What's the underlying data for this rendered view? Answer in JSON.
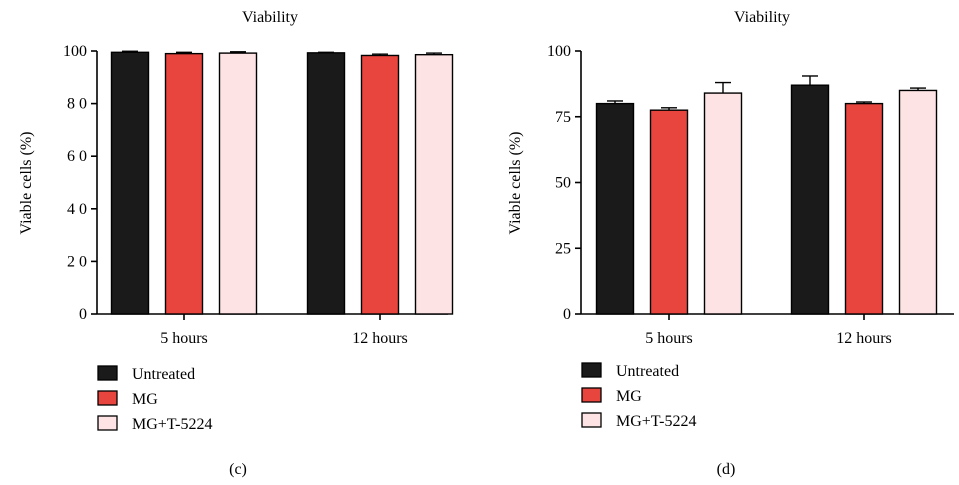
{
  "chart_data": [
    {
      "type": "bar",
      "panel_label": "(c)",
      "title": "Viability",
      "ylabel": "Viable cells (%)",
      "xlabel": "",
      "categories": [
        "5 hours",
        "12 hours"
      ],
      "ylim": [
        0,
        100
      ],
      "yticks": [
        0,
        20,
        40,
        60,
        80,
        100
      ],
      "ytick_labels": [
        "0",
        "2 0",
        "4 0",
        "6 0",
        "8 0",
        "100"
      ],
      "grid": false,
      "legend_position": "bottom-left",
      "series": [
        {
          "name": "Untreated",
          "color": "#1a1a1a",
          "values": [
            99.5,
            99.3
          ],
          "errors": [
            0.4,
            0.2
          ]
        },
        {
          "name": "MG",
          "color": "#e8453f",
          "values": [
            99.0,
            98.3
          ],
          "errors": [
            0.5,
            0.5
          ]
        },
        {
          "name": "MG+T-5224",
          "color": "#fde3e3",
          "values": [
            99.2,
            98.6
          ],
          "errors": [
            0.5,
            0.6
          ]
        }
      ]
    },
    {
      "type": "bar",
      "panel_label": "(d)",
      "title": "Viability",
      "ylabel": "Viable cells (%)",
      "xlabel": "",
      "categories": [
        "5 hours",
        "12 hours"
      ],
      "ylim": [
        0,
        100
      ],
      "yticks": [
        0,
        25,
        50,
        75,
        100
      ],
      "ytick_labels": [
        "0",
        "25",
        "50",
        "75",
        "100"
      ],
      "grid": false,
      "legend_position": "bottom-left",
      "series": [
        {
          "name": "Untreated",
          "color": "#1a1a1a",
          "values": [
            80.0,
            87.0
          ],
          "errors": [
            1.0,
            3.5
          ]
        },
        {
          "name": "MG",
          "color": "#e8453f",
          "values": [
            77.5,
            80.0
          ],
          "errors": [
            0.9,
            0.6
          ]
        },
        {
          "name": "MG+T-5224",
          "color": "#fde3e3",
          "values": [
            84.0,
            85.0
          ],
          "errors": [
            4.0,
            0.9
          ]
        }
      ]
    }
  ]
}
